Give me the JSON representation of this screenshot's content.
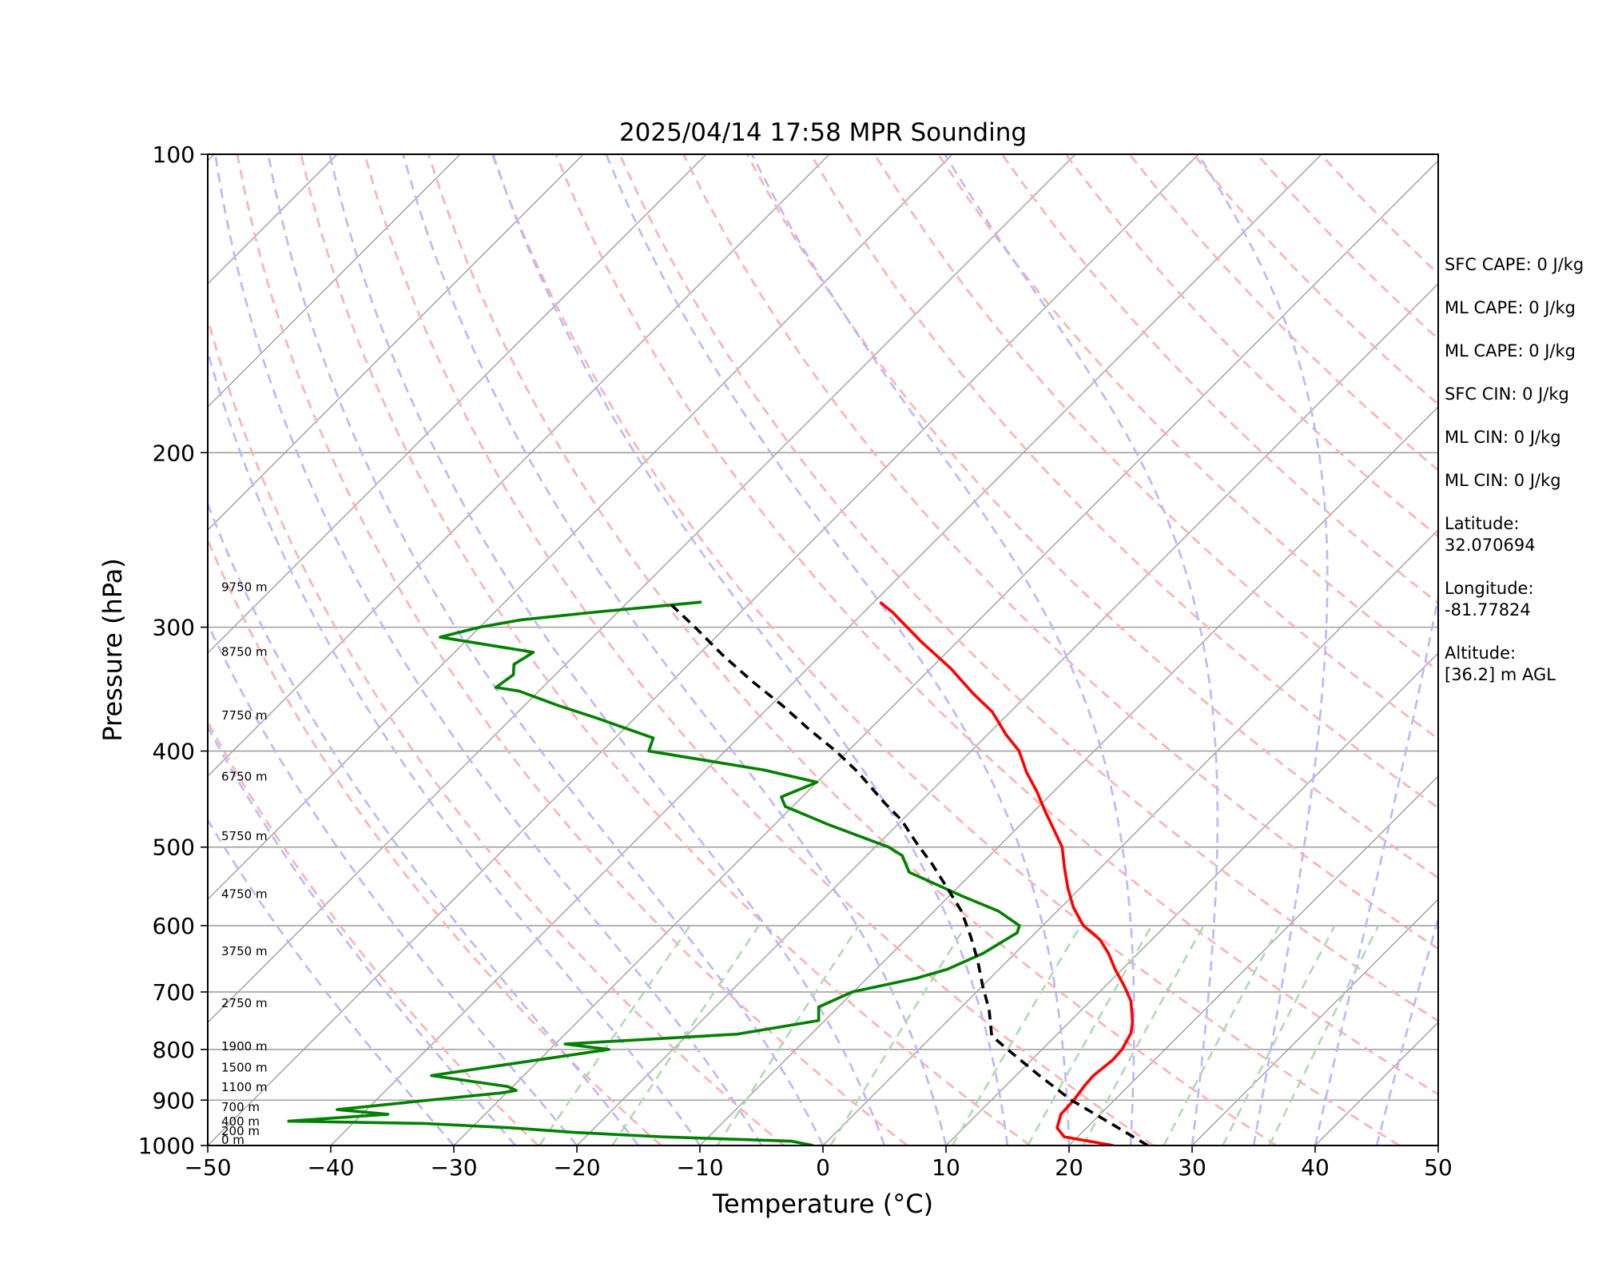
{
  "chart_data": {
    "type": "line",
    "title": "2025/04/14 17:58 MPR Sounding",
    "xlabel": "Temperature (°C)",
    "ylabel": "Pressure (hPa)",
    "xlim": [
      -50,
      50
    ],
    "ylim": [
      1000,
      100
    ],
    "y_scale": "log",
    "skew": 35,
    "x_ticks": [
      "−50",
      "−40",
      "−30",
      "−20",
      "−10",
      "0",
      "10",
      "20",
      "30",
      "40",
      "50"
    ],
    "x_tick_values": [
      -50,
      -40,
      -30,
      -20,
      -10,
      0,
      10,
      20,
      30,
      40,
      50
    ],
    "y_ticks": [
      "1000",
      "900",
      "800",
      "700",
      "600",
      "500",
      "400",
      "300",
      "200",
      "100"
    ],
    "y_tick_values": [
      1000,
      900,
      800,
      700,
      600,
      500,
      400,
      300,
      200,
      100
    ],
    "grid": true,
    "series": [
      {
        "role": "temperature",
        "color": "#ff0000",
        "points": [
          [
            23.6,
            1000
          ],
          [
            18.9,
            980
          ],
          [
            17.6,
            960
          ],
          [
            16.8,
            930
          ],
          [
            16.7,
            900
          ],
          [
            16.4,
            870
          ],
          [
            16.3,
            850
          ],
          [
            16.6,
            820
          ],
          [
            16.5,
            800
          ],
          [
            15.9,
            770
          ],
          [
            15.1,
            750
          ],
          [
            13.3,
            715
          ],
          [
            11.5,
            690
          ],
          [
            9.5,
            665
          ],
          [
            7.6,
            640
          ],
          [
            5.8,
            620
          ],
          [
            3.3,
            600
          ],
          [
            1.0,
            575
          ],
          [
            -1.0,
            550
          ],
          [
            -2.9,
            525
          ],
          [
            -4.8,
            500
          ],
          [
            -6.9,
            480
          ],
          [
            -9.1,
            460
          ],
          [
            -11.3,
            440
          ],
          [
            -13.8,
            420
          ],
          [
            -16.1,
            400
          ],
          [
            -18.5,
            385
          ],
          [
            -21.5,
            365
          ],
          [
            -24.5,
            350
          ],
          [
            -28.4,
            330
          ],
          [
            -33.0,
            310
          ],
          [
            -37.6,
            290
          ],
          [
            -39.5,
            283
          ]
        ]
      },
      {
        "role": "dewpoint",
        "color": "#008000",
        "points": [
          [
            -0.8,
            1000
          ],
          [
            -2.9,
            990
          ],
          [
            -13.8,
            980
          ],
          [
            -21.3,
            970
          ],
          [
            -26.6,
            960
          ],
          [
            -34.3,
            950
          ],
          [
            -45.4,
            945
          ],
          [
            -37.9,
            930
          ],
          [
            -42.4,
            920
          ],
          [
            -35.7,
            900
          ],
          [
            -30.4,
            885
          ],
          [
            -29.4,
            880
          ],
          [
            -30.4,
            872
          ],
          [
            -37.5,
            850
          ],
          [
            -25.2,
            800
          ],
          [
            -29.2,
            790
          ],
          [
            -16.0,
            772
          ],
          [
            -10.5,
            748
          ],
          [
            -11.6,
            725
          ],
          [
            -10.1,
            700
          ],
          [
            -6.0,
            678
          ],
          [
            -4.2,
            664
          ],
          [
            -2.6,
            640
          ],
          [
            -1.5,
            610
          ],
          [
            -1.9,
            600
          ],
          [
            -4.8,
            580
          ],
          [
            -9.0,
            560
          ],
          [
            -15.2,
            530
          ],
          [
            -17.1,
            510
          ],
          [
            -18.9,
            500
          ],
          [
            -25.5,
            475
          ],
          [
            -30.6,
            455
          ],
          [
            -31.7,
            445
          ],
          [
            -30.0,
            430
          ],
          [
            -35.3,
            418
          ],
          [
            -46.2,
            400
          ],
          [
            -46.9,
            388
          ],
          [
            -53.3,
            370
          ],
          [
            -57.2,
            360
          ],
          [
            -61.6,
            348
          ],
          [
            -63.8,
            345
          ],
          [
            -63.4,
            335
          ],
          [
            -64.2,
            327
          ],
          [
            -63.6,
            318
          ],
          [
            -72.4,
            307
          ],
          [
            -70.0,
            300
          ],
          [
            -67.3,
            295
          ],
          [
            -62.2,
            290
          ],
          [
            -54.0,
            283
          ]
        ]
      },
      {
        "role": "parcel",
        "color": "#000000",
        "points": [
          [
            26.4,
            1000
          ],
          [
            21.6,
            950
          ],
          [
            16.5,
            900
          ],
          [
            11.9,
            850
          ],
          [
            7.2,
            800
          ],
          [
            4.8,
            775
          ],
          [
            2.5,
            730
          ],
          [
            0.0,
            690
          ],
          [
            -2.5,
            650
          ],
          [
            -5.0,
            615
          ],
          [
            -7.8,
            580
          ],
          [
            -10.8,
            550
          ],
          [
            -14.0,
            520
          ],
          [
            -17.0,
            495
          ],
          [
            -20.0,
            470
          ],
          [
            -23.0,
            450
          ],
          [
            -27.5,
            420
          ],
          [
            -31.0,
            400
          ],
          [
            -35.0,
            380
          ],
          [
            -39.0,
            360
          ],
          [
            -43.5,
            340
          ],
          [
            -48.0,
            320
          ],
          [
            -52.5,
            300
          ],
          [
            -56.7,
            283
          ]
        ]
      }
    ],
    "dry_adiabats_K": [
      250,
      260,
      270,
      280,
      290,
      300,
      310,
      320,
      330,
      340,
      350,
      360,
      370,
      380,
      390,
      400,
      410,
      420,
      430,
      440,
      450
    ],
    "moist_adiabats_C": [
      -30,
      -25,
      -20,
      -15,
      -10,
      -5,
      0,
      5,
      10,
      15,
      20,
      25,
      30,
      35,
      40,
      45
    ],
    "mixing_ratio_lines_gkg": [
      0.6,
      1,
      2,
      4,
      8,
      12,
      16,
      24,
      32,
      40
    ],
    "isotherm_step_C": 10,
    "height_labels": [
      {
        "text": "0 m",
        "p": 1000
      },
      {
        "text": "200 m",
        "p": 980
      },
      {
        "text": "400 m",
        "p": 958
      },
      {
        "text": "700 m",
        "p": 927
      },
      {
        "text": "1100 m",
        "p": 885
      },
      {
        "text": "1500 m",
        "p": 845
      },
      {
        "text": "1900 m",
        "p": 805
      },
      {
        "text": "2750 m",
        "p": 728
      },
      {
        "text": "3750 m",
        "p": 645
      },
      {
        "text": "4750 m",
        "p": 565
      },
      {
        "text": "5750 m",
        "p": 494
      },
      {
        "text": "6750 m",
        "p": 430
      },
      {
        "text": "7750 m",
        "p": 373
      },
      {
        "text": "8750 m",
        "p": 322
      },
      {
        "text": "9750 m",
        "p": 277
      }
    ]
  },
  "stats_panel": [
    {
      "lines": [
        "SFC CAPE: 0 J/kg"
      ]
    },
    {
      "lines": [
        "ML CAPE: 0 J/kg"
      ]
    },
    {
      "lines": [
        "ML CAPE: 0 J/kg"
      ]
    },
    {
      "lines": [
        "SFC CIN: 0 J/kg"
      ]
    },
    {
      "lines": [
        "ML CIN: 0 J/kg"
      ]
    },
    {
      "lines": [
        "ML CIN: 0 J/kg"
      ]
    },
    {
      "lines": [
        "Latitude:",
        "32.070694"
      ]
    },
    {
      "lines": [
        "Longitude:",
        "-81.77824"
      ]
    },
    {
      "lines": [
        "Altitude:",
        "[36.2] m AGL"
      ]
    }
  ],
  "colors": {
    "temperature": "#ff0000",
    "dewpoint": "#008000",
    "parcel": "#000000",
    "isotherm": "#a0a0a0",
    "isobar": "#a0a0a0",
    "dry_adiabat": "#ffb0b0",
    "moist_adiabat": "#b8b8ff",
    "mixing_ratio": "#b0dab0"
  }
}
